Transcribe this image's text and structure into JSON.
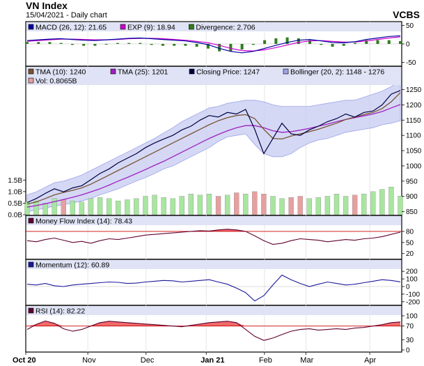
{
  "header": {
    "title": "VN Index",
    "subtitle": "15/04/2021 - Daily chart",
    "brand": "VCBS"
  },
  "colors": {
    "background": "#ffffff",
    "panel_bg": "#ffffff",
    "legend_bg": "#dfe3f5",
    "grid": "#dcdcdc",
    "macd": "#0000a0",
    "exp": "#cc00cc",
    "divergence": "#2e7d1e",
    "tma10": "#7a5230",
    "tma25": "#a020c0",
    "close": "#000040",
    "bollinger_fill": "#c6cbf2",
    "bollinger_line": "#9da3e8",
    "volume_up": "#a8e6a0",
    "volume_down": "#e6a0a0",
    "mfi_line": "#600030",
    "momentum_line": "#1a1a9a",
    "rsi_line": "#600030",
    "threshold": "#cc0000",
    "fill_over": "#ef6a6a"
  },
  "chart_data": [
    {
      "type": "line",
      "panel": "macd",
      "legend": [
        {
          "label": "MACD (26, 12): 21.65",
          "icon": "square-icon",
          "color": "#0000a0"
        },
        {
          "label": "EXP (9): 18.94",
          "icon": "square-icon",
          "color": "#cc00cc"
        },
        {
          "label": "Divergence: 2.706",
          "icon": "square-icon",
          "color": "#2e7d1e"
        }
      ],
      "y_ticks": [
        "50",
        "0",
        "-50"
      ],
      "ylim": [
        -60,
        60
      ],
      "series": [
        {
          "name": "MACD",
          "values": [
            9,
            11,
            13,
            14,
            12,
            10,
            9,
            11,
            13,
            15,
            16,
            14,
            12,
            10,
            8,
            4,
            -2,
            -12,
            -20,
            -24,
            -20,
            -12,
            -4,
            4,
            10,
            12,
            8,
            4,
            3,
            6,
            12,
            16,
            20,
            22
          ]
        },
        {
          "name": "EXP",
          "values": [
            7,
            9,
            11,
            13,
            13,
            12,
            11,
            11,
            12,
            14,
            15,
            15,
            14,
            12,
            10,
            7,
            3,
            -4,
            -12,
            -18,
            -19,
            -16,
            -10,
            -3,
            4,
            8,
            9,
            7,
            5,
            5,
            8,
            12,
            16,
            19
          ]
        },
        {
          "name": "Divergence",
          "values": [
            2,
            2,
            2,
            1,
            -1,
            -2,
            -2,
            0,
            1,
            1,
            1,
            -1,
            -2,
            -2,
            -2,
            -3,
            -5,
            -8,
            -8,
            -6,
            -1,
            4,
            6,
            7,
            6,
            4,
            -1,
            -3,
            -2,
            1,
            4,
            4,
            4,
            3
          ]
        }
      ]
    },
    {
      "type": "line",
      "panel": "price",
      "legend": [
        {
          "label": "TMA (10): 1240",
          "icon": "square-icon",
          "color": "#7a5230"
        },
        {
          "label": "TMA (25): 1201",
          "icon": "square-icon",
          "color": "#a020c0"
        },
        {
          "label": "Closing Price: 1247",
          "icon": "square-icon",
          "color": "#000040"
        },
        {
          "label": "Bollinger (20, 2): 1148 - 1276",
          "icon": "square-icon",
          "color": "#9da3e8"
        },
        {
          "label": "Vol: 0.8065B",
          "icon": "square-icon",
          "color": "#e6a0a0"
        }
      ],
      "y_ticks": [
        "1250",
        "1200",
        "1150",
        "1100",
        "1050",
        "1000",
        "950",
        "900",
        "850"
      ],
      "ylim": [
        840,
        1290
      ],
      "volume_ticks": [
        "1.5B",
        "1.0B",
        "0.5B",
        "0.0B"
      ],
      "volume_max": 1.75,
      "series": [
        {
          "name": "Closing Price",
          "values": [
            880,
            893,
            910,
            925,
            915,
            928,
            935,
            955,
            975,
            990,
            1010,
            1025,
            1040,
            1060,
            1075,
            1088,
            1100,
            1118,
            1130,
            1150,
            1165,
            1160,
            1175,
            1170,
            1185,
            1120,
            1040,
            1090,
            1140,
            1105,
            1100,
            1118,
            1130,
            1145,
            1155,
            1170,
            1160,
            1175,
            1180,
            1200,
            1235,
            1247
          ]
        },
        {
          "name": "TMA (10)",
          "values": [
            875,
            882,
            893,
            905,
            913,
            920,
            928,
            940,
            955,
            970,
            985,
            1000,
            1015,
            1030,
            1045,
            1060,
            1075,
            1090,
            1105,
            1120,
            1135,
            1148,
            1158,
            1165,
            1168,
            1155,
            1120,
            1090,
            1088,
            1098,
            1105,
            1112,
            1120,
            1130,
            1140,
            1152,
            1160,
            1168,
            1175,
            1188,
            1210,
            1240
          ]
        },
        {
          "name": "TMA (25)",
          "values": [
            865,
            870,
            876,
            883,
            890,
            897,
            905,
            915,
            925,
            937,
            950,
            962,
            975,
            988,
            1002,
            1015,
            1030,
            1045,
            1060,
            1075,
            1090,
            1103,
            1115,
            1125,
            1132,
            1132,
            1125,
            1115,
            1110,
            1112,
            1117,
            1123,
            1130,
            1137,
            1145,
            1152,
            1158,
            1164,
            1170,
            1178,
            1190,
            1201
          ]
        },
        {
          "name": "Bollinger Upper",
          "values": [
            905,
            915,
            930,
            945,
            950,
            960,
            970,
            985,
            1000,
            1015,
            1030,
            1045,
            1060,
            1075,
            1090,
            1108,
            1125,
            1145,
            1160,
            1175,
            1190,
            1195,
            1205,
            1210,
            1215,
            1215,
            1210,
            1200,
            1195,
            1195,
            1195,
            1195,
            1200,
            1205,
            1210,
            1215,
            1215,
            1225,
            1235,
            1245,
            1260,
            1276
          ]
        },
        {
          "name": "Bollinger Lower",
          "values": [
            850,
            855,
            862,
            868,
            873,
            878,
            885,
            893,
            905,
            915,
            925,
            938,
            950,
            962,
            975,
            990,
            1000,
            1015,
            1030,
            1045,
            1060,
            1080,
            1095,
            1100,
            1105,
            1070,
            1040,
            1030,
            1030,
            1040,
            1060,
            1075,
            1085,
            1090,
            1100,
            1110,
            1115,
            1120,
            1125,
            1135,
            1140,
            1148
          ]
        },
        {
          "name": "Volume",
          "values": [
            0.55,
            0.6,
            0.5,
            0.7,
            0.65,
            0.6,
            0.55,
            0.7,
            0.75,
            0.7,
            0.6,
            0.65,
            0.7,
            0.8,
            0.85,
            0.75,
            0.7,
            0.8,
            0.9,
            0.85,
            0.9,
            0.8,
            0.85,
            0.95,
            0.9,
            1.0,
            0.9,
            0.8,
            0.7,
            0.75,
            0.8,
            0.7,
            0.75,
            0.8,
            0.9,
            0.8,
            0.85,
            0.9,
            1.0,
            1.1,
            1.2,
            0.81
          ]
        }
      ]
    },
    {
      "type": "line",
      "panel": "mfi",
      "legend": [
        {
          "label": "Money Flow Index (14): 78.43",
          "icon": "square-icon",
          "color": "#600030"
        }
      ],
      "y_ticks": [
        "80",
        "50",
        "20"
      ],
      "ylim": [
        10,
        95
      ],
      "threshold": 80,
      "series": [
        {
          "name": "MFI",
          "values": [
            55,
            52,
            58,
            62,
            56,
            50,
            53,
            48,
            55,
            60,
            58,
            62,
            66,
            70,
            72,
            74,
            76,
            78,
            80,
            82,
            81,
            84,
            86,
            84,
            80,
            68,
            55,
            45,
            48,
            55,
            60,
            58,
            56,
            52,
            55,
            58,
            56,
            60,
            62,
            66,
            72,
            78
          ]
        }
      ]
    },
    {
      "type": "line",
      "panel": "momentum",
      "legend": [
        {
          "label": "Momentum (12): 60.89",
          "icon": "square-icon",
          "color": "#1a1a9a"
        }
      ],
      "y_ticks": [
        "200",
        "100",
        "0",
        "-100",
        "-200"
      ],
      "ylim": [
        -220,
        220
      ],
      "series": [
        {
          "name": "Momentum",
          "values": [
            30,
            20,
            40,
            10,
            0,
            20,
            30,
            40,
            50,
            60,
            55,
            40,
            45,
            60,
            70,
            80,
            75,
            60,
            70,
            80,
            90,
            60,
            30,
            -20,
            -80,
            -190,
            -120,
            20,
            150,
            90,
            40,
            0,
            30,
            60,
            40,
            20,
            30,
            50,
            70,
            90,
            80,
            61
          ]
        }
      ]
    },
    {
      "type": "line",
      "panel": "rsi",
      "legend": [
        {
          "label": "RSI (14): 82.22",
          "icon": "square-icon",
          "color": "#600030"
        }
      ],
      "y_ticks": [
        "100",
        "70",
        "30",
        "0"
      ],
      "ylim": [
        0,
        100
      ],
      "threshold": 70,
      "series": [
        {
          "name": "RSI",
          "values": [
            60,
            75,
            85,
            78,
            62,
            55,
            60,
            70,
            80,
            84,
            82,
            80,
            78,
            76,
            74,
            72,
            70,
            68,
            72,
            76,
            80,
            82,
            84,
            80,
            60,
            40,
            28,
            35,
            45,
            55,
            60,
            62,
            58,
            60,
            62,
            60,
            64,
            66,
            70,
            74,
            80,
            82
          ]
        }
      ]
    },
    {
      "type": "axis",
      "panel": "x-axis",
      "x_ticks": [
        "Oct 20",
        "Nov",
        "Dec",
        "Jan 21",
        "Feb",
        "Mar",
        "Apr"
      ],
      "bold_ticks": [
        "Oct 20",
        "Jan 21"
      ]
    }
  ]
}
